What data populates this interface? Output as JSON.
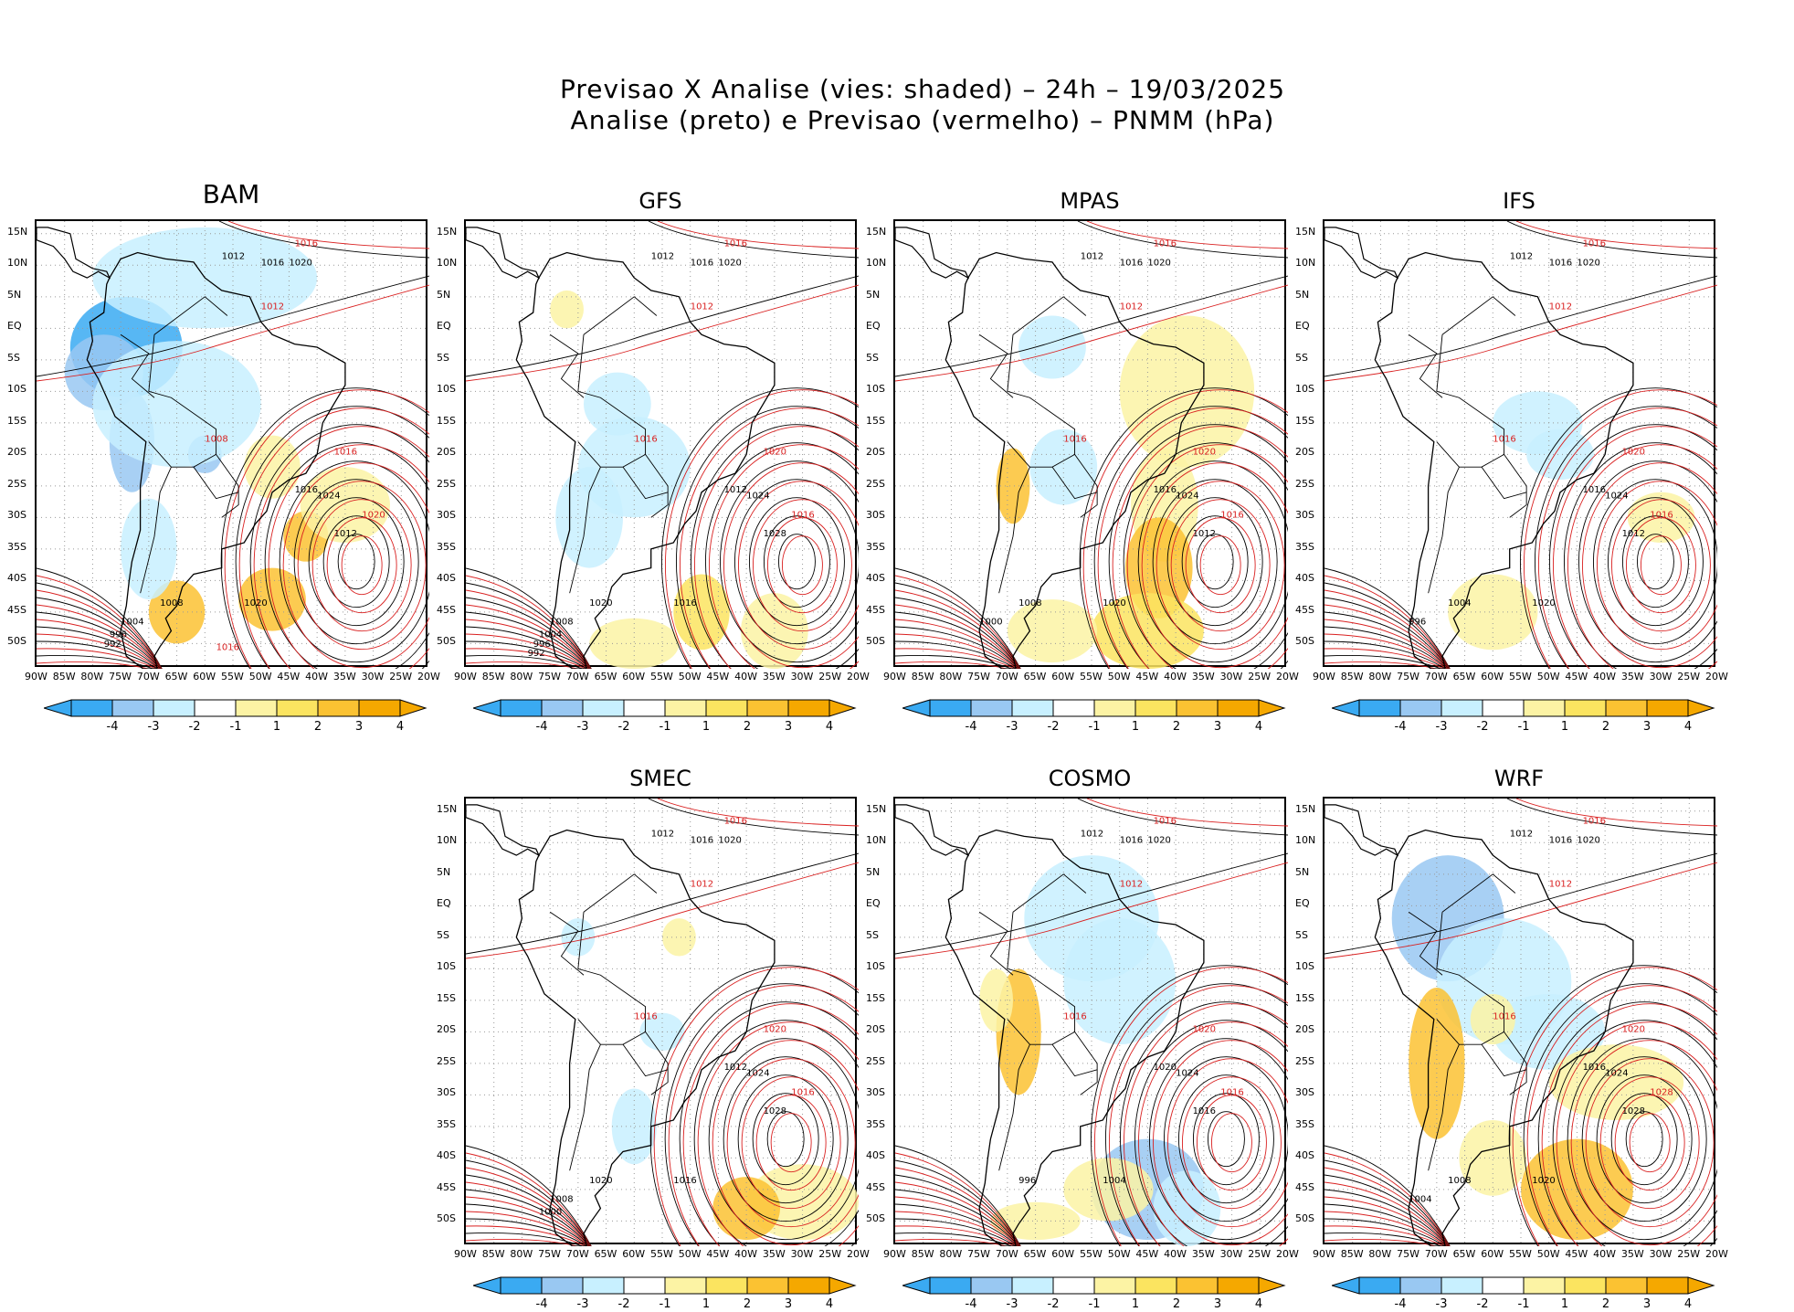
{
  "title": {
    "line1": "Previsao X Analise (vies: shaded) – 24h – 19/03/2025",
    "line2": "Analise (preto) e Previsao (vermelho) – PNMM (hPa)"
  },
  "lat_labels": [
    "15N",
    "10N",
    "5N",
    "EQ",
    "5S",
    "10S",
    "15S",
    "20S",
    "25S",
    "30S",
    "35S",
    "40S",
    "45S",
    "50S"
  ],
  "lon_labels": [
    "90W",
    "85W",
    "80W",
    "75W",
    "70W",
    "65W",
    "60W",
    "55W",
    "50W",
    "45W",
    "40W",
    "35W",
    "30W",
    "25W",
    "20W"
  ],
  "colorbar": {
    "labels": [
      "-4",
      "-3",
      "-2",
      "-1",
      "1",
      "2",
      "3",
      "4"
    ],
    "colors": [
      "#3aaaf2",
      "#99c8f2",
      "#c8f0ff",
      "#ffffff",
      "#fcf3a4",
      "#fbe460",
      "#fbc232",
      "#f5a800"
    ]
  },
  "panels": [
    {
      "name": "BAM",
      "contours": {
        "black": [
          "1012",
          "1016",
          "1020",
          "1024",
          "1012",
          "1016",
          "1020",
          "1008",
          "1004",
          "996",
          "992"
        ],
        "red": [
          "1016",
          "1012",
          "1008",
          "1016",
          "1020",
          "1016"
        ]
      }
    },
    {
      "name": "GFS",
      "contours": {
        "black": [
          "1012",
          "1016",
          "1020",
          "1024",
          "1028",
          "1012",
          "1016",
          "1020",
          "1008",
          "1004",
          "996",
          "992"
        ],
        "red": [
          "1016",
          "1012",
          "1016",
          "1020",
          "1016"
        ]
      }
    },
    {
      "name": "MPAS",
      "contours": {
        "black": [
          "1012",
          "1016",
          "1020",
          "1024",
          "1012",
          "1016",
          "1020",
          "1008",
          "1000"
        ],
        "red": [
          "1016",
          "1012",
          "1016",
          "1020",
          "1016"
        ]
      }
    },
    {
      "name": "IFS",
      "contours": {
        "black": [
          "1012",
          "1016",
          "1020",
          "1024",
          "1012",
          "1016",
          "1020",
          "1004",
          "996"
        ],
        "red": [
          "1016",
          "1012",
          "1016",
          "1020",
          "1016"
        ]
      }
    },
    {
      "name": "SMEC",
      "contours": {
        "black": [
          "1012",
          "1016",
          "1020",
          "1024",
          "1028",
          "1012",
          "1016",
          "1020",
          "1008",
          "1000"
        ],
        "red": [
          "1016",
          "1012",
          "1016",
          "1020",
          "1016"
        ]
      }
    },
    {
      "name": "COSMO",
      "contours": {
        "black": [
          "1012",
          "1016",
          "1020",
          "1024",
          "1016",
          "1020",
          "1004",
          "996"
        ],
        "red": [
          "1016",
          "1012",
          "1016",
          "1020",
          "1016"
        ]
      }
    },
    {
      "name": "WRF",
      "contours": {
        "black": [
          "1012",
          "1016",
          "1020",
          "1024",
          "1028",
          "1016",
          "1020",
          "1008",
          "1004"
        ],
        "red": [
          "1016",
          "1012",
          "1016",
          "1020",
          "1028"
        ]
      }
    }
  ]
}
